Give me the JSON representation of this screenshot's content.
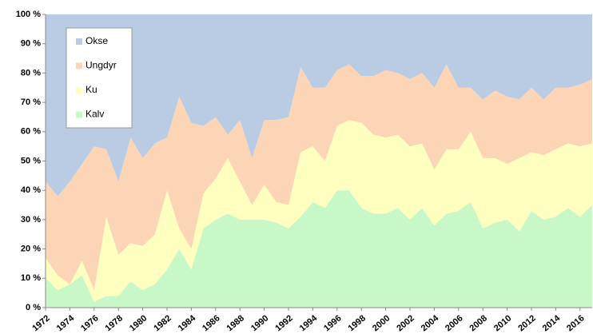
{
  "chart_data": {
    "type": "stacked_area_100",
    "x": [
      1972,
      1973,
      1974,
      1975,
      1976,
      1977,
      1978,
      1979,
      1980,
      1981,
      1982,
      1983,
      1984,
      1985,
      1986,
      1987,
      1988,
      1989,
      1990,
      1991,
      1992,
      1993,
      1994,
      1995,
      1996,
      1997,
      1998,
      1999,
      2000,
      2001,
      2002,
      2003,
      2004,
      2005,
      2006,
      2007,
      2008,
      2009,
      2010,
      2011,
      2012,
      2013,
      2014,
      2015,
      2016,
      2017
    ],
    "xlim": [
      1972,
      2017
    ],
    "xticks": [
      1972,
      1974,
      1976,
      1978,
      1980,
      1982,
      1984,
      1986,
      1988,
      1990,
      1992,
      1994,
      1996,
      1998,
      2000,
      2002,
      2004,
      2006,
      2008,
      2010,
      2012,
      2014,
      2016
    ],
    "ylim": [
      0,
      100
    ],
    "yticks": [
      {
        "value": 0,
        "label": "0 %"
      },
      {
        "value": 10,
        "label": "10 %"
      },
      {
        "value": 20,
        "label": "20 %"
      },
      {
        "value": 30,
        "label": "30 %"
      },
      {
        "value": 40,
        "label": "40 %"
      },
      {
        "value": 50,
        "label": "50 %"
      },
      {
        "value": 60,
        "label": "60 %"
      },
      {
        "value": 70,
        "label": "70 %"
      },
      {
        "value": 80,
        "label": "80 %"
      },
      {
        "value": 90,
        "label": "90 %"
      },
      {
        "value": 100,
        "label": "100 %"
      }
    ],
    "legend": "upper left",
    "series": [
      {
        "name": "Kalv",
        "color": "#c8f8c8",
        "values": [
          10,
          6,
          8,
          11,
          2,
          4,
          4,
          9,
          6,
          8,
          13,
          20,
          13,
          27,
          30,
          32,
          30,
          30,
          30,
          29,
          27,
          31,
          36,
          34,
          40,
          40,
          34,
          32,
          32,
          34,
          30,
          34,
          28,
          32,
          33,
          36,
          27,
          29,
          30,
          26,
          33,
          30,
          31,
          34,
          31,
          35
        ]
      },
      {
        "name": "Ku",
        "color": "#ffffc0",
        "values": [
          7,
          5,
          0,
          5,
          4,
          27,
          14,
          13,
          15,
          17,
          27,
          7,
          7,
          12,
          14,
          19,
          13,
          5,
          12,
          7,
          8,
          22,
          19,
          16,
          22,
          24,
          29,
          27,
          26,
          25,
          25,
          22,
          19,
          22,
          21,
          24,
          24,
          22,
          19,
          25,
          20,
          22,
          23,
          22,
          24,
          21
        ]
      },
      {
        "name": "Ungdyr",
        "color": "#fbd5b6",
        "values": [
          26,
          27,
          35,
          33,
          49,
          23,
          25,
          36,
          30,
          31,
          18,
          45,
          43,
          23,
          21,
          8,
          21,
          16,
          22,
          28,
          30,
          29,
          20,
          25,
          19,
          19,
          16,
          20,
          23,
          21,
          23,
          24,
          28,
          29,
          21,
          15,
          20,
          23,
          23,
          20,
          22,
          19,
          21,
          19,
          21,
          22
        ]
      },
      {
        "name": "Okse",
        "color": "#b9cce4",
        "values": [
          57,
          62,
          57,
          51,
          45,
          46,
          57,
          42,
          49,
          44,
          42,
          28,
          37,
          38,
          35,
          41,
          36,
          49,
          36,
          36,
          35,
          18,
          25,
          25,
          19,
          17,
          21,
          21,
          19,
          20,
          22,
          20,
          25,
          17,
          25,
          25,
          29,
          26,
          28,
          29,
          25,
          29,
          25,
          25,
          24,
          22
        ]
      }
    ]
  }
}
